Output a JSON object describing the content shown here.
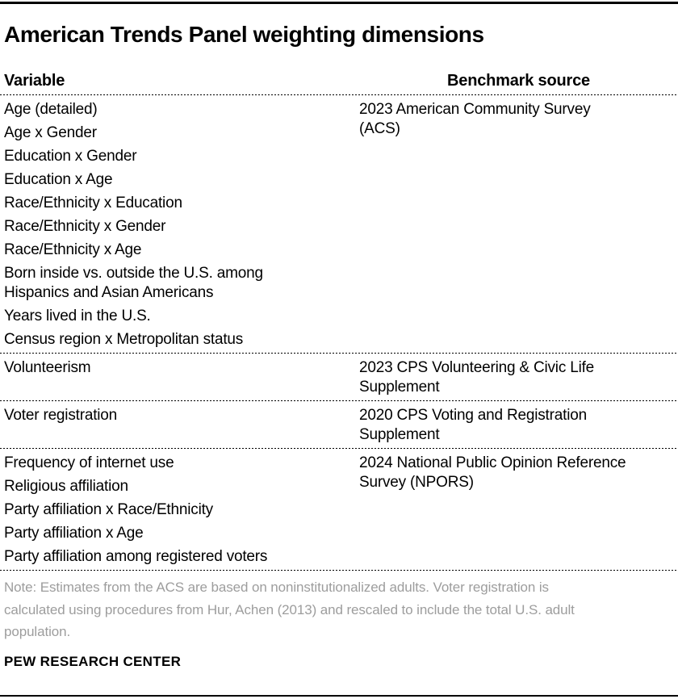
{
  "title": "American Trends Panel weighting dimensions",
  "table": {
    "col_headers": {
      "variable": "Variable",
      "benchmark": "Benchmark source"
    },
    "sections": [
      {
        "variables": [
          "Age (detailed)",
          "Age x Gender",
          "Education x Gender",
          "Education x Age",
          "Race/Ethnicity x Education",
          "Race/Ethnicity x Gender",
          "Race/Ethnicity x Age",
          "Born inside vs. outside the U.S. among Hispanics and Asian Americans",
          "Years lived in the U.S.",
          "Census region x Metropolitan status"
        ],
        "source": "2023 American Community Survey (ACS)"
      },
      {
        "variables": [
          "Volunteerism"
        ],
        "source": "2023 CPS Volunteering & Civic Life Supplement"
      },
      {
        "variables": [
          "Voter registration"
        ],
        "source": "2020 CPS Voting and Registration Supplement"
      },
      {
        "variables": [
          "Frequency of internet use",
          "Religious affiliation",
          "Party affiliation x Race/Ethnicity",
          "Party affiliation x Age",
          "Party affiliation among registered voters"
        ],
        "source": "2024 National Public Opinion Reference Survey (NPORS)"
      }
    ]
  },
  "note": "Note: Estimates from the ACS are based on noninstitutionalized adults. Voter registration is calculated using procedures from Hur, Achen (2013) and rescaled to include the total U.S. adult population.",
  "brand": "PEW RESEARCH CENTER",
  "colors": {
    "text": "#000000",
    "note_gray": "#9d9d9d",
    "rule": "#000000"
  },
  "chart_data": {
    "type": "table",
    "title": "American Trends Panel weighting dimensions",
    "columns": [
      "Variable",
      "Benchmark source"
    ],
    "rows": [
      {
        "variables": [
          "Age (detailed)",
          "Age x Gender",
          "Education x Gender",
          "Education x Age",
          "Race/Ethnicity x Education",
          "Race/Ethnicity x Gender",
          "Race/Ethnicity x Age",
          "Born inside vs. outside the U.S. among Hispanics and Asian Americans",
          "Years lived in the U.S.",
          "Census region x Metropolitan status"
        ],
        "benchmark_source": "2023 American Community Survey (ACS)"
      },
      {
        "variables": [
          "Volunteerism"
        ],
        "benchmark_source": "2023 CPS Volunteering & Civic Life Supplement"
      },
      {
        "variables": [
          "Voter registration"
        ],
        "benchmark_source": "2020 CPS Voting and Registration Supplement"
      },
      {
        "variables": [
          "Frequency of internet use",
          "Religious affiliation",
          "Party affiliation x Race/Ethnicity",
          "Party affiliation x Age",
          "Party affiliation among registered voters"
        ],
        "benchmark_source": "2024 National Public Opinion Reference Survey (NPORS)"
      }
    ],
    "layout_hints": {
      "dividers": "dotted horizontal rules between sections",
      "top_rule": "solid black",
      "bottom_rule": "solid black",
      "note_color": "gray"
    }
  }
}
